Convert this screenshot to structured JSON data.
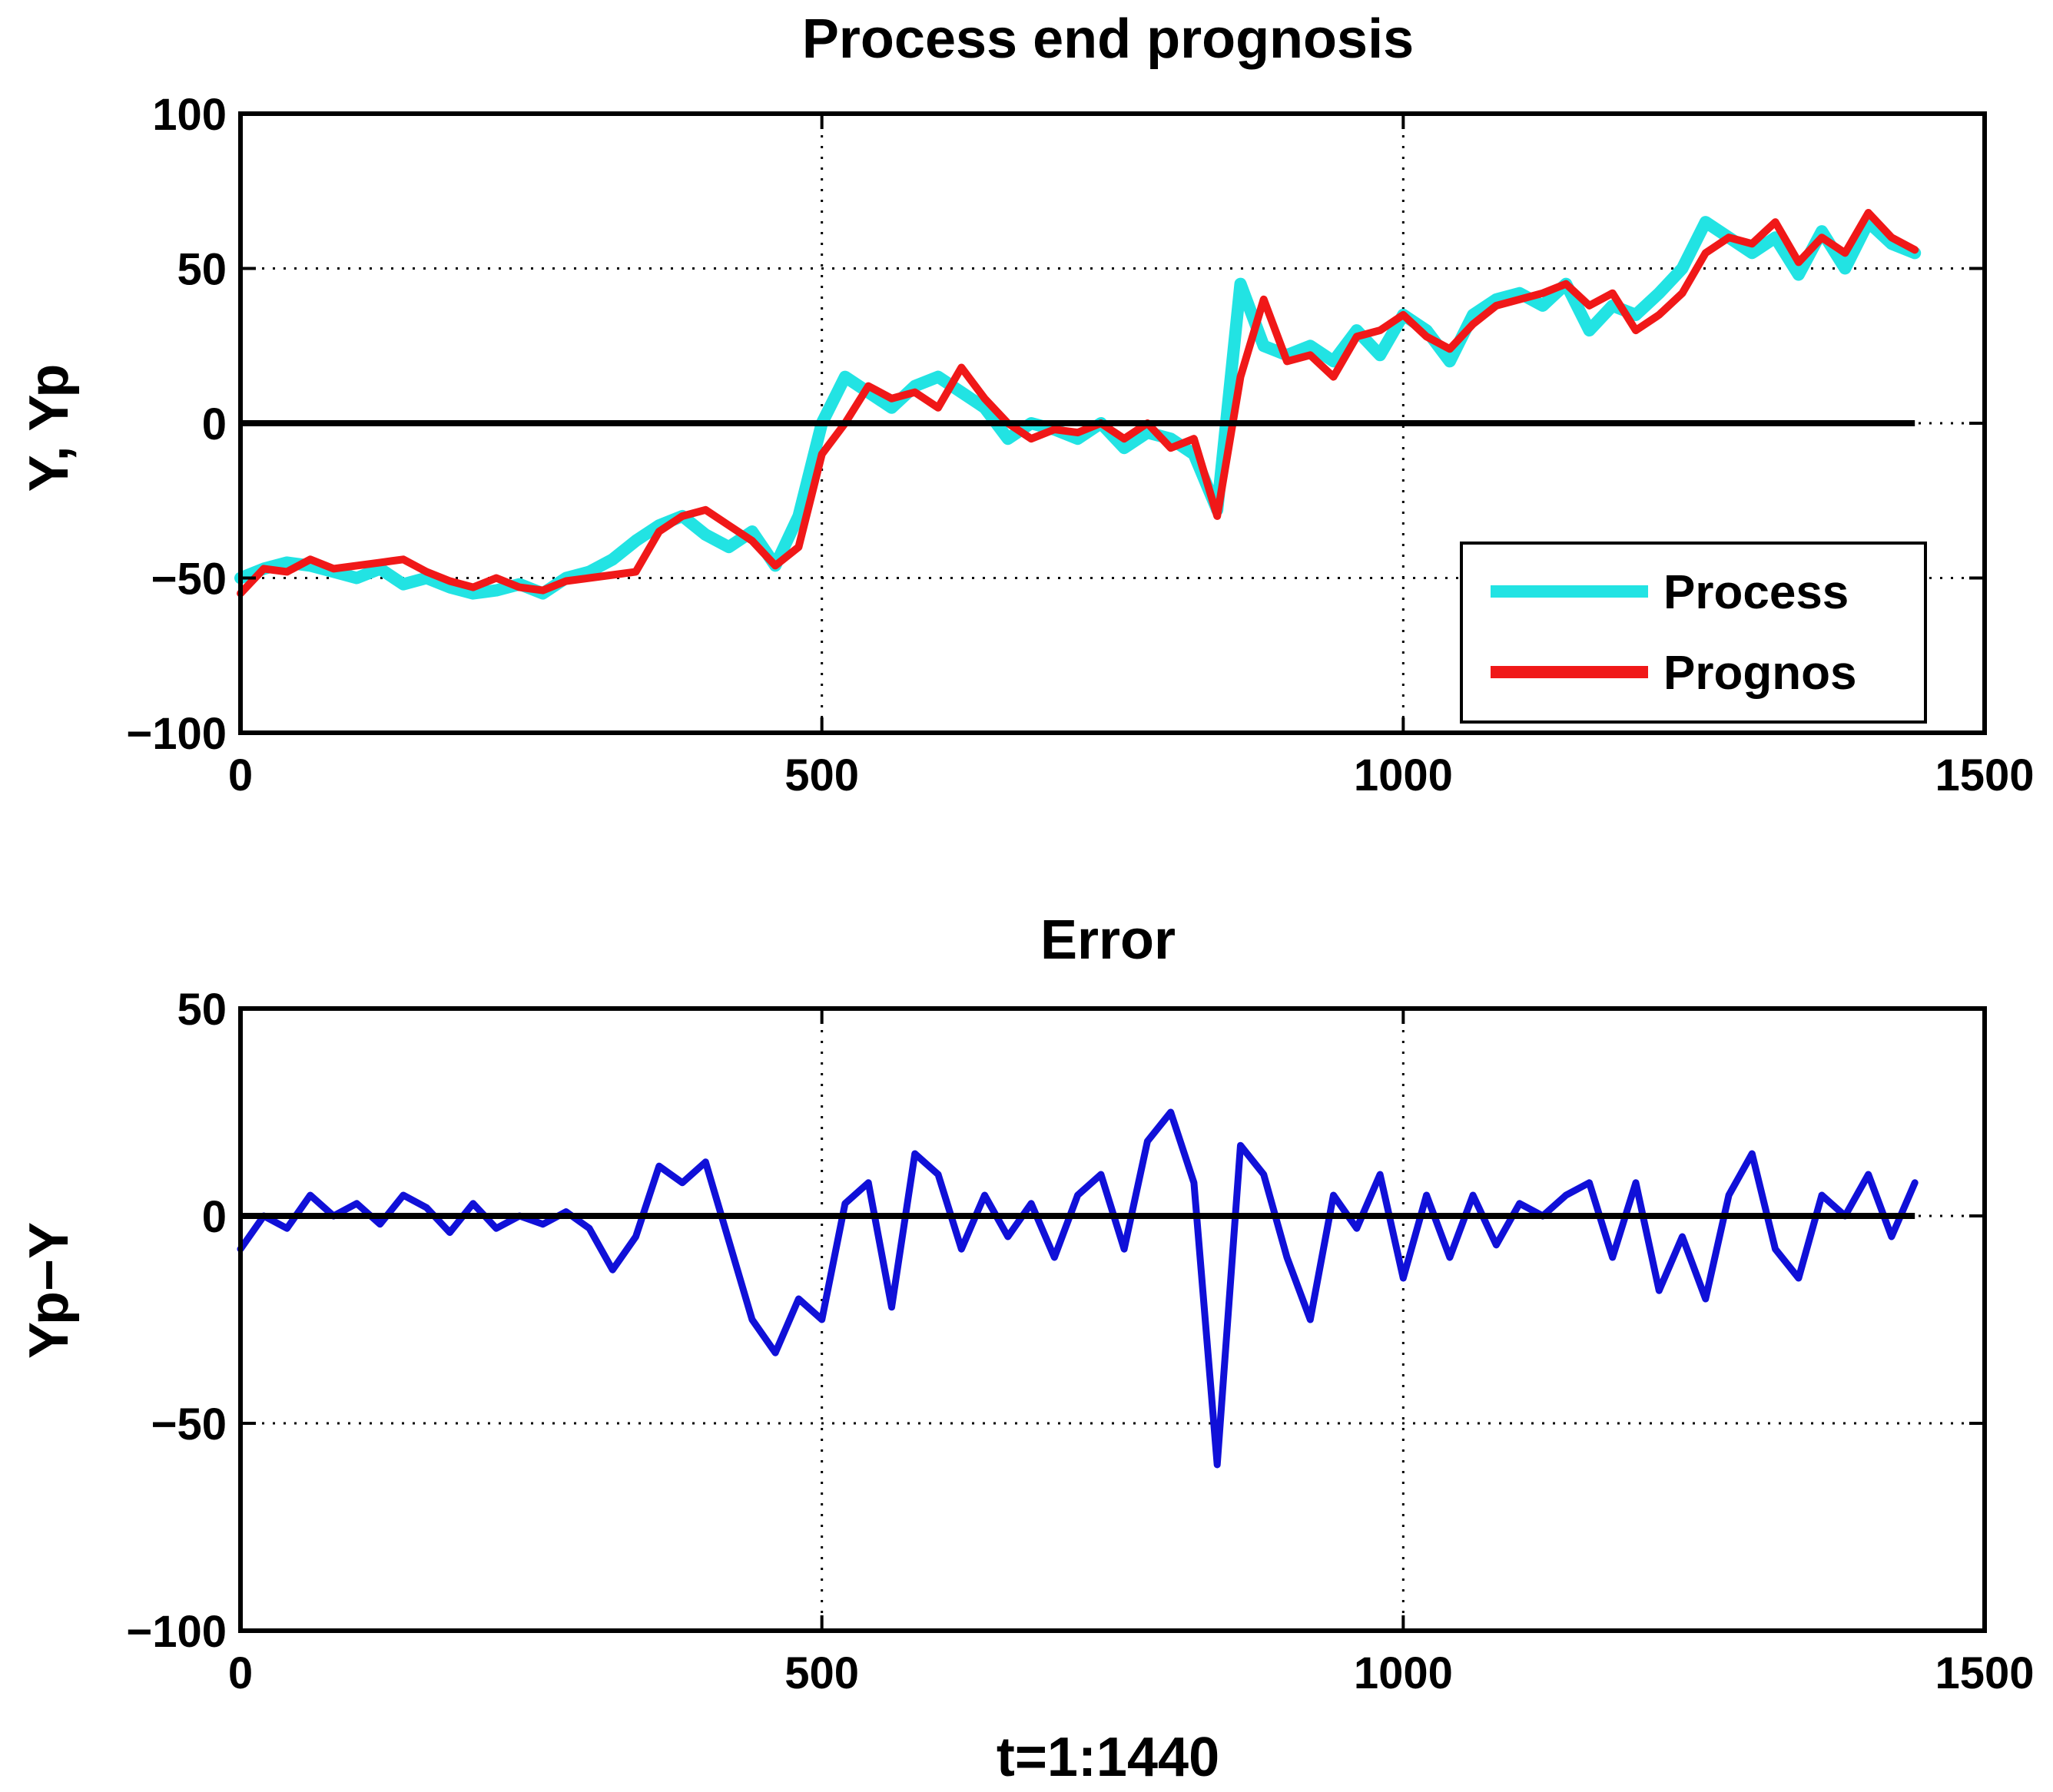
{
  "chart_data": [
    {
      "type": "line",
      "title": "Process end prognosis",
      "xlabel": "",
      "ylabel": "Y,  Yp",
      "xlim": [
        0,
        1500
      ],
      "ylim": [
        -100,
        100
      ],
      "xticks": [
        0,
        500,
        1000,
        1500
      ],
      "yticks": [
        -100,
        -50,
        0,
        50,
        100
      ],
      "xtick_labels": [
        "0",
        "500",
        "1000",
        "1500"
      ],
      "ytick_labels": [
        "−100",
        "−50",
        "0",
        "50",
        "100"
      ],
      "grid": true,
      "legend_position": "bottom-right",
      "zero_line": {
        "x": [
          0,
          1440
        ],
        "y": 0,
        "color": "#000000"
      },
      "series": [
        {
          "name": "Process",
          "color": "#22e3e3",
          "x": [
            0,
            20,
            40,
            60,
            80,
            100,
            120,
            140,
            160,
            180,
            200,
            220,
            240,
            260,
            280,
            300,
            320,
            340,
            360,
            380,
            400,
            420,
            440,
            460,
            480,
            500,
            520,
            540,
            560,
            580,
            600,
            620,
            640,
            660,
            680,
            700,
            720,
            740,
            760,
            780,
            800,
            820,
            840,
            860,
            880,
            900,
            920,
            940,
            960,
            980,
            1000,
            1020,
            1040,
            1060,
            1080,
            1100,
            1120,
            1140,
            1160,
            1180,
            1200,
            1220,
            1240,
            1260,
            1280,
            1300,
            1320,
            1340,
            1360,
            1380,
            1400,
            1420,
            1440
          ],
          "values": [
            -50,
            -47,
            -45,
            -46,
            -48,
            -50,
            -47,
            -52,
            -50,
            -53,
            -55,
            -54,
            -52,
            -55,
            -50,
            -48,
            -44,
            -38,
            -33,
            -30,
            -36,
            -40,
            -35,
            -46,
            -30,
            0,
            15,
            10,
            5,
            12,
            15,
            10,
            5,
            -5,
            0,
            -2,
            -5,
            0,
            -8,
            -3,
            -5,
            -10,
            -28,
            45,
            25,
            22,
            25,
            20,
            30,
            22,
            35,
            30,
            20,
            35,
            40,
            42,
            38,
            45,
            30,
            38,
            35,
            42,
            50,
            65,
            60,
            55,
            60,
            48,
            62,
            50,
            65,
            58,
            55
          ]
        },
        {
          "name": "Prognos",
          "color": "#f01818",
          "x": [
            0,
            20,
            40,
            60,
            80,
            100,
            120,
            140,
            160,
            180,
            200,
            220,
            240,
            260,
            280,
            300,
            320,
            340,
            360,
            380,
            400,
            420,
            440,
            460,
            480,
            500,
            520,
            540,
            560,
            580,
            600,
            620,
            640,
            660,
            680,
            700,
            720,
            740,
            760,
            780,
            800,
            820,
            840,
            860,
            880,
            900,
            920,
            940,
            960,
            980,
            1000,
            1020,
            1040,
            1060,
            1080,
            1100,
            1120,
            1140,
            1160,
            1180,
            1200,
            1220,
            1240,
            1260,
            1280,
            1300,
            1320,
            1340,
            1360,
            1380,
            1400,
            1420,
            1440
          ],
          "values": [
            -55,
            -47,
            -48,
            -44,
            -47,
            -46,
            -45,
            -44,
            -48,
            -51,
            -53,
            -50,
            -53,
            -54,
            -51,
            -50,
            -49,
            -48,
            -35,
            -30,
            -28,
            -33,
            -38,
            -46,
            -40,
            -10,
            0,
            12,
            8,
            10,
            5,
            18,
            8,
            0,
            -5,
            -2,
            -3,
            0,
            -5,
            0,
            -8,
            -5,
            -30,
            15,
            40,
            20,
            22,
            15,
            28,
            30,
            35,
            28,
            24,
            32,
            38,
            40,
            42,
            45,
            38,
            42,
            30,
            35,
            42,
            55,
            60,
            58,
            65,
            52,
            60,
            55,
            68,
            60,
            56
          ]
        }
      ]
    },
    {
      "type": "line",
      "title": "Error",
      "xlabel": "t=1:1440",
      "ylabel": "Yp−Y",
      "xlim": [
        0,
        1500
      ],
      "ylim": [
        -100,
        50
      ],
      "xticks": [
        0,
        500,
        1000,
        1500
      ],
      "yticks": [
        -100,
        -50,
        0,
        50
      ],
      "xtick_labels": [
        "0",
        "500",
        "1000",
        "1500"
      ],
      "ytick_labels": [
        "−100",
        "−50",
        "0",
        "50"
      ],
      "grid": true,
      "zero_line": {
        "x": [
          0,
          1440
        ],
        "y": 0,
        "color": "#000000"
      },
      "series": [
        {
          "color": "#1010d8",
          "x": [
            0,
            20,
            40,
            60,
            80,
            100,
            120,
            140,
            160,
            180,
            200,
            220,
            240,
            260,
            280,
            300,
            320,
            340,
            360,
            380,
            400,
            420,
            440,
            460,
            480,
            500,
            520,
            540,
            560,
            580,
            600,
            620,
            640,
            660,
            680,
            700,
            720,
            740,
            760,
            780,
            800,
            820,
            840,
            860,
            880,
            900,
            920,
            940,
            960,
            980,
            1000,
            1020,
            1040,
            1060,
            1080,
            1100,
            1120,
            1140,
            1160,
            1180,
            1200,
            1220,
            1240,
            1260,
            1280,
            1300,
            1320,
            1340,
            1360,
            1380,
            1400,
            1420,
            1440
          ],
          "values": [
            -8,
            0,
            -3,
            5,
            0,
            3,
            -2,
            5,
            2,
            -4,
            3,
            -3,
            0,
            -2,
            1,
            -3,
            -13,
            -5,
            12,
            8,
            13,
            -6,
            -25,
            -33,
            -20,
            -25,
            3,
            8,
            -22,
            15,
            10,
            -8,
            5,
            -5,
            3,
            -10,
            5,
            10,
            -8,
            18,
            25,
            8,
            -60,
            17,
            10,
            -10,
            -25,
            5,
            -3,
            10,
            -15,
            5,
            -10,
            5,
            -7,
            3,
            0,
            5,
            8,
            -10,
            8,
            -18,
            -5,
            -20,
            5,
            15,
            -8,
            -15,
            5,
            0,
            10,
            -5,
            8
          ]
        }
      ]
    }
  ]
}
